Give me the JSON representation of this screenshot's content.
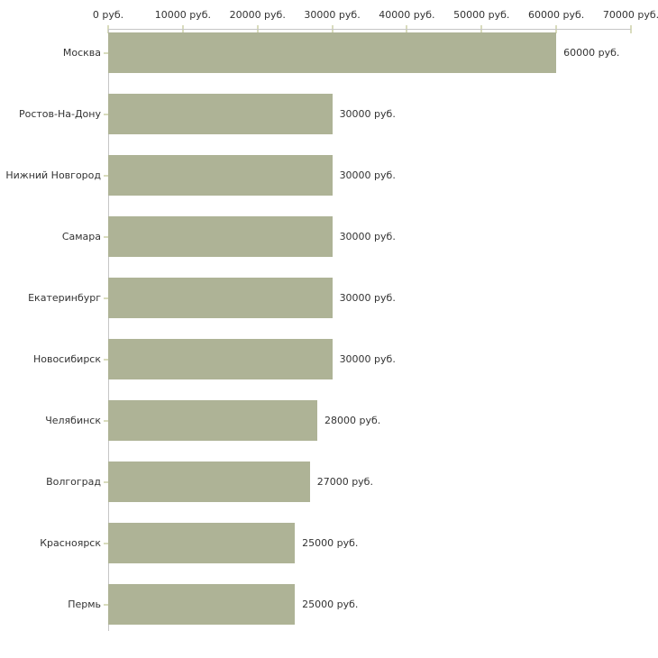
{
  "chart_data": {
    "type": "bar",
    "orientation": "horizontal",
    "title": "",
    "xlabel": "",
    "ylabel": "",
    "categories": [
      "Москва",
      "Ростов-На-Дону",
      "Нижний Новгород",
      "Самара",
      "Екатеринбург",
      "Новосибирск",
      "Челябинск",
      "Волгоград",
      "Красноярск",
      "Пермь"
    ],
    "values": [
      60000,
      30000,
      30000,
      30000,
      30000,
      30000,
      28000,
      27000,
      25000,
      25000
    ],
    "value_labels": [
      "60000 руб.",
      "30000 руб.",
      "30000 руб.",
      "30000 руб.",
      "30000 руб.",
      "30000 руб.",
      "28000 руб.",
      "27000 руб.",
      "25000 руб.",
      "25000 руб."
    ],
    "xlim": [
      0,
      70000
    ],
    "x_ticks": [
      0,
      10000,
      20000,
      30000,
      40000,
      50000,
      60000,
      70000
    ],
    "x_tick_labels": [
      "0 руб.",
      "10000 руб.",
      "20000 руб.",
      "30000 руб.",
      "40000 руб.",
      "50000 руб.",
      "60000 руб.",
      "70000 руб."
    ],
    "x_axis_position": "top",
    "legend": null,
    "grid": false,
    "colors": {
      "bar": "#aeb396",
      "axis_line": "#c6c6c6",
      "tick_mark": "#d9dcbd",
      "text": "#333333",
      "background": "#ffffff"
    }
  }
}
